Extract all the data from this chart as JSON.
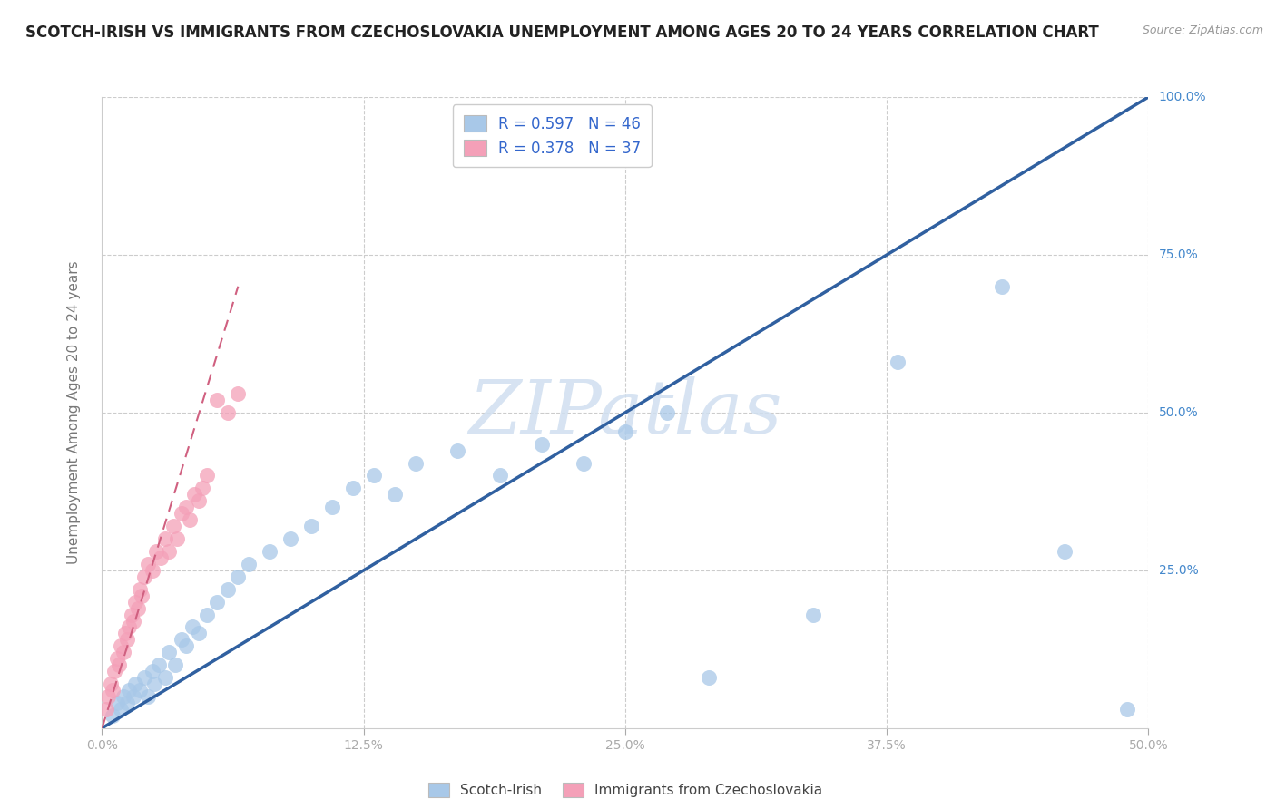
{
  "title": "SCOTCH-IRISH VS IMMIGRANTS FROM CZECHOSLOVAKIA UNEMPLOYMENT AMONG AGES 20 TO 24 YEARS CORRELATION CHART",
  "source": "Source: ZipAtlas.com",
  "ylabel": "Unemployment Among Ages 20 to 24 years",
  "xlim": [
    0.0,
    0.5
  ],
  "ylim": [
    0.0,
    1.0
  ],
  "xtick_labels": [
    "0.0%",
    "",
    "12.5%",
    "",
    "25.0%",
    "",
    "37.5%",
    "",
    "50.0%"
  ],
  "xtick_values": [
    0.0,
    0.0625,
    0.125,
    0.1875,
    0.25,
    0.3125,
    0.375,
    0.4375,
    0.5
  ],
  "ytick_labels": [
    "100.0%",
    "75.0%",
    "50.0%",
    "25.0%"
  ],
  "ytick_values": [
    1.0,
    0.75,
    0.5,
    0.25
  ],
  "legend_labels": [
    "Scotch-Irish",
    "Immigrants from Czechoslovakia"
  ],
  "R_blue": 0.597,
  "N_blue": 46,
  "R_pink": 0.378,
  "N_pink": 37,
  "blue_color": "#a8c8e8",
  "pink_color": "#f4a0b8",
  "blue_line_color": "#3060a0",
  "pink_line_color": "#d06080",
  "watermark": "ZIPatlas",
  "background_color": "#ffffff",
  "grid_color": "#cccccc",
  "title_fontsize": 12,
  "axis_label_fontsize": 11,
  "blue_scatter_x": [
    0.005,
    0.007,
    0.009,
    0.01,
    0.012,
    0.013,
    0.015,
    0.016,
    0.018,
    0.02,
    0.022,
    0.024,
    0.025,
    0.027,
    0.03,
    0.032,
    0.035,
    0.038,
    0.04,
    0.043,
    0.046,
    0.05,
    0.055,
    0.06,
    0.065,
    0.07,
    0.08,
    0.09,
    0.1,
    0.11,
    0.12,
    0.13,
    0.14,
    0.15,
    0.17,
    0.19,
    0.21,
    0.23,
    0.25,
    0.27,
    0.29,
    0.34,
    0.38,
    0.43,
    0.46,
    0.49
  ],
  "blue_scatter_y": [
    0.02,
    0.04,
    0.03,
    0.05,
    0.04,
    0.06,
    0.05,
    0.07,
    0.06,
    0.08,
    0.05,
    0.09,
    0.07,
    0.1,
    0.08,
    0.12,
    0.1,
    0.14,
    0.13,
    0.16,
    0.15,
    0.18,
    0.2,
    0.22,
    0.24,
    0.26,
    0.28,
    0.3,
    0.32,
    0.35,
    0.38,
    0.4,
    0.37,
    0.42,
    0.44,
    0.4,
    0.45,
    0.42,
    0.47,
    0.5,
    0.08,
    0.18,
    0.58,
    0.7,
    0.28,
    0.03
  ],
  "pink_scatter_x": [
    0.002,
    0.003,
    0.004,
    0.005,
    0.006,
    0.007,
    0.008,
    0.009,
    0.01,
    0.011,
    0.012,
    0.013,
    0.014,
    0.015,
    0.016,
    0.017,
    0.018,
    0.019,
    0.02,
    0.022,
    0.024,
    0.026,
    0.028,
    0.03,
    0.032,
    0.034,
    0.036,
    0.038,
    0.04,
    0.042,
    0.044,
    0.046,
    0.048,
    0.05,
    0.055,
    0.06,
    0.065
  ],
  "pink_scatter_y": [
    0.03,
    0.05,
    0.07,
    0.06,
    0.09,
    0.11,
    0.1,
    0.13,
    0.12,
    0.15,
    0.14,
    0.16,
    0.18,
    0.17,
    0.2,
    0.19,
    0.22,
    0.21,
    0.24,
    0.26,
    0.25,
    0.28,
    0.27,
    0.3,
    0.28,
    0.32,
    0.3,
    0.34,
    0.35,
    0.33,
    0.37,
    0.36,
    0.38,
    0.4,
    0.52,
    0.5,
    0.53
  ],
  "blue_line_x0": 0.0,
  "blue_line_x1": 0.5,
  "blue_line_y0": 0.0,
  "blue_line_y1": 1.0,
  "pink_line_x0": 0.0,
  "pink_line_x1": 0.065,
  "pink_line_y0": 0.0,
  "pink_line_y1": 0.7
}
